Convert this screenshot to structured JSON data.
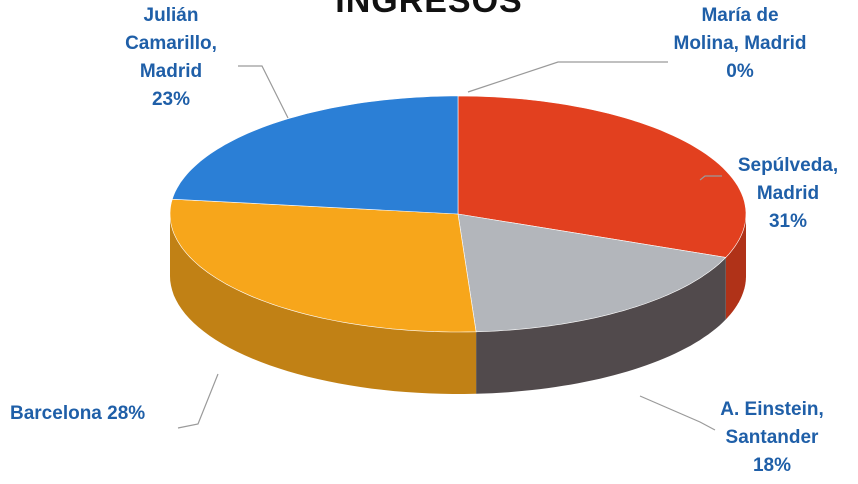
{
  "chart_data": {
    "type": "pie",
    "title": "INGRESOS",
    "slices": [
      {
        "label": "María de Molina, Madrid",
        "value": 0,
        "display": "María de\nMolina, Madrid\n0%",
        "color": "#e63e22"
      },
      {
        "label": "Sepúlveda, Madrid",
        "value": 31,
        "display": "Sepúlveda,\nMadrid\n31%",
        "color": "#e2401f"
      },
      {
        "label": "A. Einstein, Santander",
        "value": 18,
        "display": "A. Einstein,\nSantander\n18%",
        "color": "#b3b6bb"
      },
      {
        "label": "Barcelona",
        "value": 28,
        "display": "Barcelona 28%",
        "color": "#f7a61b"
      },
      {
        "label": "Julián Camarillo, Madrid",
        "value": 23,
        "display": "Julián\nCamarillo,\nMadrid\n23%",
        "color": "#2b7fd6"
      }
    ],
    "label_color": "#1f5fa8"
  }
}
